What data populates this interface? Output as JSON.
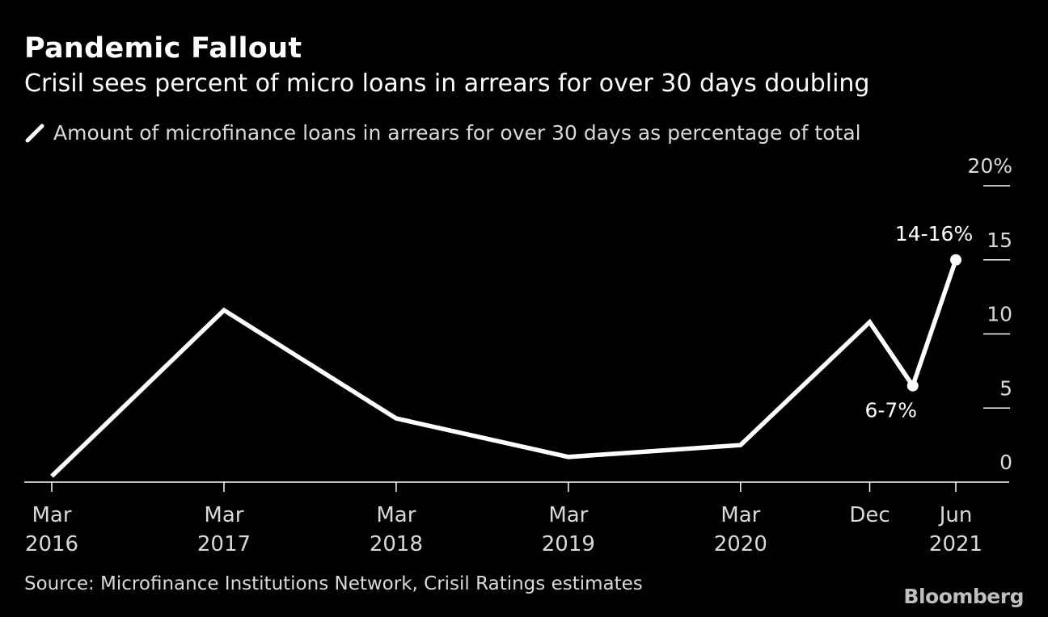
{
  "header": {
    "title": "Pandemic Fallout",
    "subtitle": "Crisil sees percent of micro loans in arrears for over 30 days doubling"
  },
  "footer": {
    "source": "Source: Microfinance Institutions Network, Crisil Ratings estimates",
    "brand": "Bloomberg"
  },
  "colors": {
    "background": "#000000",
    "line": "#ffffff",
    "text": "#d9d9d9"
  },
  "chart_data": {
    "type": "line",
    "title": "Pandemic Fallout",
    "subtitle": "Crisil sees percent of micro loans in arrears for over 30 days doubling",
    "xlabel": "",
    "ylabel": "",
    "ylim": [
      0,
      20
    ],
    "yticks": [
      {
        "value": 20,
        "label": "20%"
      },
      {
        "value": 15,
        "label": "15"
      },
      {
        "value": 10,
        "label": "10"
      },
      {
        "value": 5,
        "label": "5"
      },
      {
        "value": 0,
        "label": "0"
      }
    ],
    "xlim": [
      "2016-03",
      "2021-08"
    ],
    "xticks": [
      {
        "date": "2016-03",
        "line1": "Mar",
        "line2": "2016"
      },
      {
        "date": "2017-03",
        "line1": "Mar",
        "line2": "2017"
      },
      {
        "date": "2018-03",
        "line1": "Mar",
        "line2": "2018"
      },
      {
        "date": "2019-03",
        "line1": "Mar",
        "line2": "2019"
      },
      {
        "date": "2020-03",
        "line1": "Mar",
        "line2": "2020"
      },
      {
        "date": "2020-12",
        "line1": "Dec",
        "line2": ""
      },
      {
        "date": "2021-06",
        "line1": "Jun",
        "line2": "2021"
      }
    ],
    "grid": false,
    "legend_position": "top-left",
    "series": [
      {
        "name": "Amount of microfinance loans in arrears for over 30 days as percentage of total",
        "points": [
          {
            "x": "2016-03",
            "y": 0.4
          },
          {
            "x": "2017-03",
            "y": 11.6
          },
          {
            "x": "2018-03",
            "y": 4.3
          },
          {
            "x": "2019-03",
            "y": 1.7
          },
          {
            "x": "2020-03",
            "y": 2.5
          },
          {
            "x": "2020-12",
            "y": 10.8
          },
          {
            "x": "2021-03",
            "y": 6.5
          },
          {
            "x": "2021-06",
            "y": 15.0
          }
        ]
      }
    ],
    "annotations": [
      {
        "x": "2021-06",
        "y": 15.0,
        "text": "14-16%",
        "position": "above"
      },
      {
        "x": "2021-03",
        "y": 6.5,
        "text": "6-7%",
        "position": "below"
      }
    ]
  }
}
